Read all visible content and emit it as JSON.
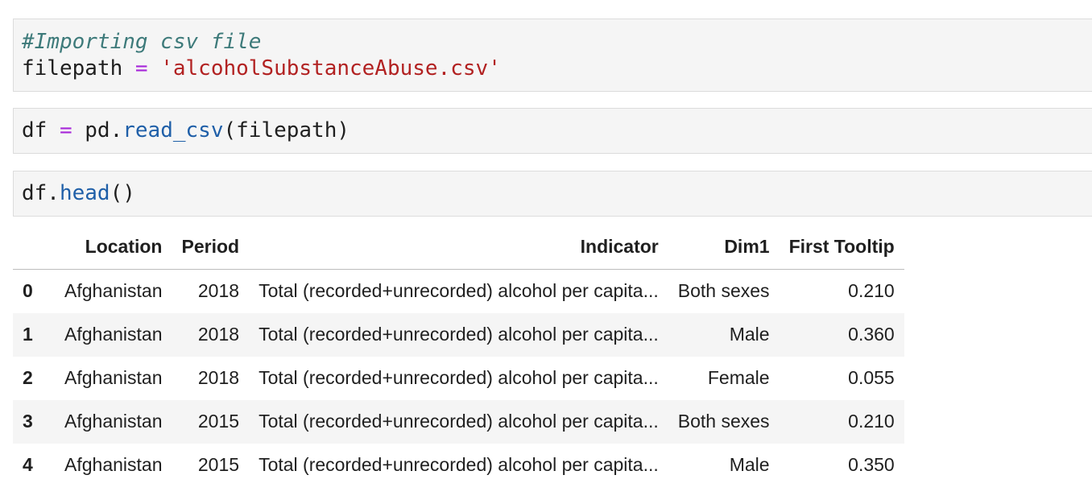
{
  "cells": [
    {
      "lines": [
        [
          {
            "text": "#Importing csv file",
            "kind": "comment"
          }
        ],
        [
          {
            "text": "filepath ",
            "kind": "text"
          },
          {
            "text": "=",
            "kind": "op"
          },
          {
            "text": " ",
            "kind": "text"
          },
          {
            "text": "'alcoholSubstanceAbuse.csv'",
            "kind": "str"
          }
        ]
      ]
    },
    {
      "lines": [
        [
          {
            "text": "df ",
            "kind": "text"
          },
          {
            "text": "=",
            "kind": "op"
          },
          {
            "text": " pd.",
            "kind": "text"
          },
          {
            "text": "read_csv",
            "kind": "fn"
          },
          {
            "text": "(filepath)",
            "kind": "text"
          }
        ]
      ]
    },
    {
      "lines": [
        [
          {
            "text": "df.",
            "kind": "text"
          },
          {
            "text": "head",
            "kind": "fn"
          },
          {
            "text": "()",
            "kind": "text"
          }
        ]
      ]
    }
  ],
  "colors": {
    "comment": "#3d7a7a",
    "op": "#a626d9",
    "str": "#b22222",
    "fn": "#1f5fa8",
    "cell_background": "#f5f5f5"
  },
  "output_table": {
    "columns": [
      "",
      "Location",
      "Period",
      "Indicator",
      "Dim1",
      "First Tooltip"
    ],
    "rows": [
      {
        "index": "0",
        "values": [
          "Afghanistan",
          "2018",
          "Total (recorded+unrecorded) alcohol per capita...",
          "Both sexes",
          "0.210"
        ]
      },
      {
        "index": "1",
        "values": [
          "Afghanistan",
          "2018",
          "Total (recorded+unrecorded) alcohol per capita...",
          "Male",
          "0.360"
        ]
      },
      {
        "index": "2",
        "values": [
          "Afghanistan",
          "2018",
          "Total (recorded+unrecorded) alcohol per capita...",
          "Female",
          "0.055"
        ]
      },
      {
        "index": "3",
        "values": [
          "Afghanistan",
          "2015",
          "Total (recorded+unrecorded) alcohol per capita...",
          "Both sexes",
          "0.210"
        ]
      },
      {
        "index": "4",
        "values": [
          "Afghanistan",
          "2015",
          "Total (recorded+unrecorded) alcohol per capita...",
          "Male",
          "0.350"
        ]
      }
    ]
  }
}
